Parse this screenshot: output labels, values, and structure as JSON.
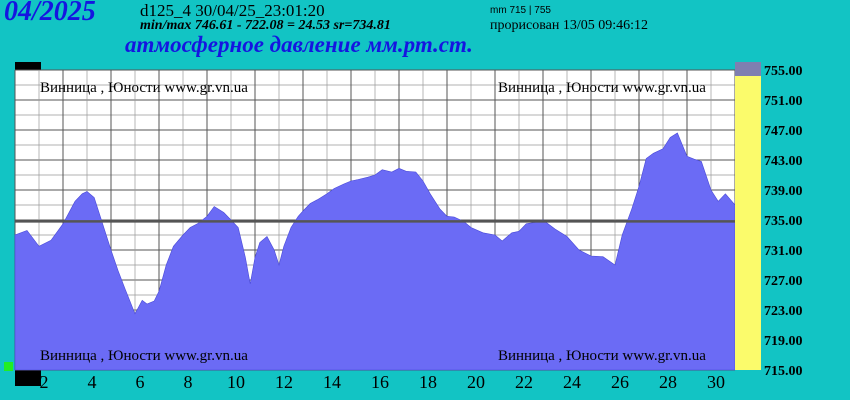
{
  "header": {
    "period": "04/2025",
    "file_id": "d125_4   30/04/25_23:01:20",
    "minmax": "min/max   746.61 - 722.08 = 24.53      sr=734.81",
    "range_label": "mm 715 | 755",
    "rendered": "прорисован 13/05 09:46:12",
    "title": "атмосферное давление мм.рт.ст."
  },
  "watermarks": {
    "left": "Винница , Юности   www.gr.vn.ua",
    "right": "Винница , Юности   www.gr.vn.ua"
  },
  "colors": {
    "background": "#12c4c4",
    "fill": "#6b6bf5",
    "plot_bg": "#ffffff",
    "scale_bar": "#fbfb6b",
    "mean_line": "#555555"
  },
  "chart_data": {
    "type": "area",
    "title": "атмосферное давление мм.рт.ст.",
    "ylim": [
      715,
      755
    ],
    "xlim": [
      0,
      30
    ],
    "mean": 734.81,
    "min": 722.08,
    "max": 746.61,
    "grid": true,
    "yticks": [
      "755.00",
      "751.00",
      "747.00",
      "743.00",
      "739.00",
      "735.00",
      "731.00",
      "727.00",
      "723.00",
      "719.00",
      "715.00"
    ],
    "xticks": [
      "2",
      "4",
      "6",
      "8",
      "10",
      "12",
      "14",
      "16",
      "18",
      "20",
      "22",
      "24",
      "26",
      "28",
      "30"
    ],
    "x": [
      0,
      0.5,
      1,
      1.5,
      2,
      2.5,
      2.8,
      3,
      3.3,
      3.6,
      4,
      4.3,
      4.6,
      5,
      5.3,
      5.5,
      5.8,
      6,
      6.3,
      6.6,
      7,
      7.3,
      7.6,
      8,
      8.3,
      8.7,
      9,
      9.3,
      9.6,
      9.8,
      10,
      10.2,
      10.5,
      10.8,
      11,
      11.2,
      11.5,
      11.8,
      12,
      12.3,
      12.6,
      13,
      13.3,
      13.7,
      14,
      14.3,
      14.7,
      15,
      15.3,
      15.7,
      16,
      16.3,
      16.7,
      17,
      17.3,
      17.7,
      18,
      18.3,
      18.7,
      19,
      19.5,
      20,
      20.3,
      20.7,
      21,
      21.3,
      21.7,
      22,
      22.5,
      23,
      23.5,
      24,
      24.5,
      25,
      25.3,
      25.7,
      26,
      26.3,
      26.6,
      27,
      27.3,
      27.6,
      28,
      28.3,
      28.6,
      29,
      29.3,
      29.6,
      30,
      30.3,
      30.5
    ],
    "y": [
      733,
      733.6,
      731.5,
      732.3,
      734.5,
      737.5,
      738.5,
      738.8,
      738,
      735,
      731,
      728.2,
      725.7,
      722.5,
      724.3,
      723.8,
      724.2,
      725.5,
      729,
      731.5,
      733,
      734,
      734.5,
      735.5,
      736.8,
      736,
      735,
      734,
      730,
      726.5,
      730,
      732,
      732.8,
      731,
      729,
      731.5,
      734,
      735.5,
      736.2,
      737.2,
      737.7,
      738.5,
      739.2,
      739.8,
      740.2,
      740.4,
      740.7,
      741,
      741.7,
      741.4,
      741.9,
      741.5,
      741.4,
      740.2,
      738.5,
      736.5,
      735.5,
      735.4,
      734.8,
      734,
      733.3,
      733,
      732.2,
      733.3,
      733.5,
      734.5,
      734.7,
      735,
      733.8,
      732.8,
      731,
      730.2,
      730.1,
      729,
      733,
      736.5,
      739.5,
      743.2,
      743.9,
      744.5,
      746,
      746.6,
      743.5,
      743.1,
      742.8,
      739,
      737.5,
      738.5,
      737,
      737.8,
      737.8
    ]
  }
}
